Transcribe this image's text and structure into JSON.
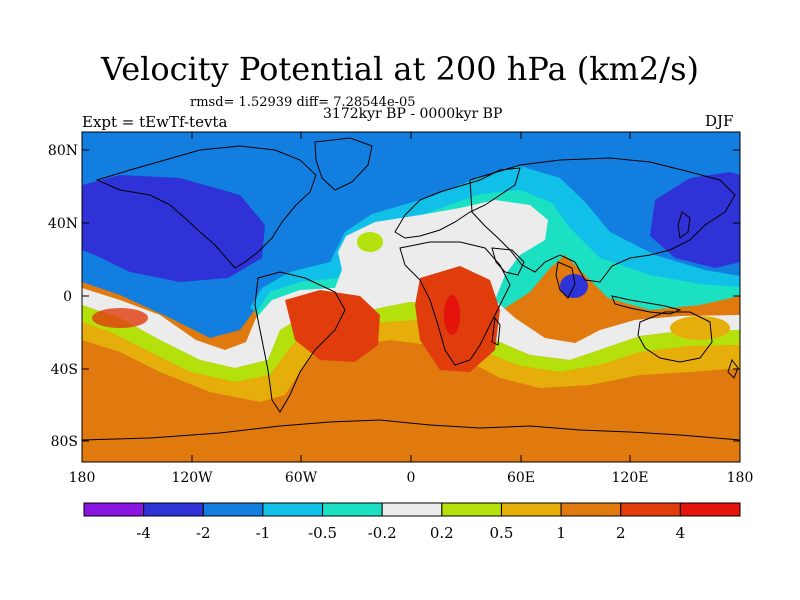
{
  "header": {
    "title": "Velocity Potential at 200 hPa (km2/s)",
    "stats": "rmsd= 1.52939 diff= 7.28544e-05",
    "period": "3172kyr BP - 0000kyr BP",
    "experiment": "Expt = tEwTf-tevta",
    "season": "DJF"
  },
  "axes": {
    "lat_labels": [
      "80N",
      "40N",
      "0",
      "40S",
      "80S"
    ],
    "lon_labels": [
      "180",
      "120W",
      "60W",
      "0",
      "60E",
      "120E",
      "180"
    ]
  },
  "colorbar": {
    "labels": [
      "-4",
      "-2",
      "-1",
      "-0.5",
      "-0.2",
      "0.2",
      "0.5",
      "1",
      "2",
      "4"
    ],
    "colors": [
      "#8a14e0",
      "#2f32d6",
      "#127ee0",
      "#11c0e8",
      "#1be0c2",
      "#ececec",
      "#b4e00c",
      "#e6ae0a",
      "#e07a0e",
      "#e03c0c",
      "#e6120c"
    ]
  }
}
